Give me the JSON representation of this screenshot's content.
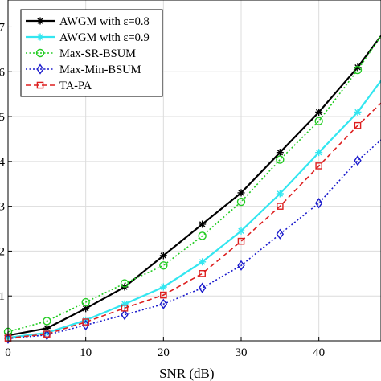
{
  "chart_data": {
    "type": "line",
    "xlabel": "SNR (dB)",
    "ylabel": "",
    "title": "",
    "xlim": [
      0,
      48
    ],
    "ylim": [
      0,
      7.6
    ],
    "xticks": [
      0,
      10,
      20,
      30,
      40
    ],
    "x_tick_labels": [
      "0",
      "10",
      "20",
      "30",
      "40"
    ],
    "yticks": [
      1,
      2,
      3,
      4,
      5,
      6,
      7
    ],
    "y_tick_labels": [
      "1",
      "2",
      "3",
      "4",
      "5",
      "6",
      "7"
    ],
    "grid": true,
    "legend_position": "top-left",
    "x": [
      0,
      5,
      10,
      15,
      20,
      25,
      30,
      35,
      40,
      45,
      48
    ],
    "series": [
      {
        "name": "AWGM with ε=0.8",
        "color": "#000000",
        "marker": "asterisk",
        "line_style": "solid",
        "values": [
          0.12,
          0.28,
          0.72,
          1.2,
          1.9,
          2.6,
          3.3,
          4.2,
          5.1,
          6.1,
          6.8
        ]
      },
      {
        "name": "AWGM with ε=0.9",
        "color": "#33e6f0",
        "marker": "asterisk",
        "line_style": "solid",
        "values": [
          0.07,
          0.18,
          0.46,
          0.82,
          1.2,
          1.76,
          2.45,
          3.28,
          4.2,
          5.1,
          5.8
        ]
      },
      {
        "name": "Max-SR-BSUM",
        "color": "#22cc22",
        "marker": "circle",
        "line_style": "dotted",
        "values": [
          0.2,
          0.44,
          0.86,
          1.28,
          1.68,
          2.34,
          3.1,
          4.04,
          4.9,
          6.04,
          6.8
        ]
      },
      {
        "name": "Max-Min-BSUM",
        "color": "#1a1acc",
        "marker": "diamond",
        "line_style": "dotted",
        "values": [
          0.05,
          0.13,
          0.35,
          0.58,
          0.82,
          1.18,
          1.68,
          2.38,
          3.07,
          4.02,
          4.48
        ]
      },
      {
        "name": "TA-PA",
        "color": "#dd1f1f",
        "marker": "square",
        "line_style": "dashed",
        "values": [
          0.06,
          0.15,
          0.42,
          0.73,
          1.02,
          1.5,
          2.22,
          3.0,
          3.9,
          4.8,
          5.3
        ]
      }
    ]
  }
}
